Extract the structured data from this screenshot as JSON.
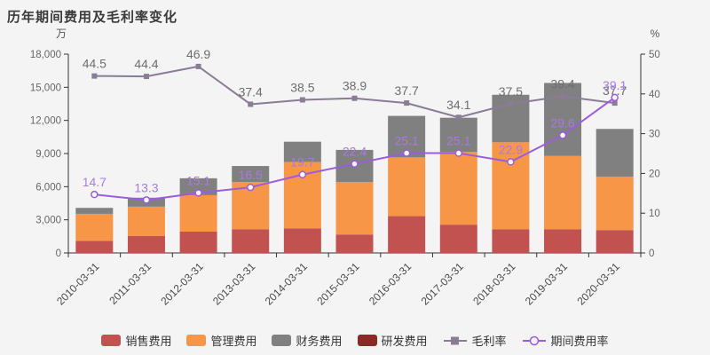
{
  "title": "历年期间费用及毛利率变化",
  "colors": {
    "background": "#f4f4f4",
    "axis_line": "#333333",
    "tick_label": "#666666",
    "category_label": "#4a4a4a"
  },
  "chart_data": {
    "type": "bar",
    "subtype": "stacked-bars-with-lines",
    "title": "历年期间费用及毛利率变化",
    "categories": [
      "2010-03-31",
      "2011-03-31",
      "2012-03-31",
      "2013-03-31",
      "2014-03-31",
      "2015-03-31",
      "2016-03-31",
      "2017-03-31",
      "2018-03-31",
      "2019-03-31",
      "2020-03-31"
    ],
    "left_axis": {
      "unit": "万",
      "min": 0,
      "max": 18000,
      "step": 3000
    },
    "right_axis": {
      "unit": "%",
      "min": 0,
      "max": 50,
      "step": 10
    },
    "grid": false,
    "legend_position": "bottom",
    "bar_series": [
      {
        "key": "selling-expense",
        "name": "销售费用",
        "color": "#c25250",
        "axis": "left",
        "values": [
          1100,
          1550,
          1930,
          2150,
          2230,
          1670,
          3330,
          2560,
          2150,
          2150,
          2070
        ]
      },
      {
        "key": "admin-expense",
        "name": "管理费用",
        "color": "#f79646",
        "axis": "left",
        "values": [
          2440,
          2640,
          3300,
          4270,
          6010,
          4760,
          5320,
          6580,
          7870,
          6630,
          4840
        ]
      },
      {
        "key": "finance-expense",
        "name": "财务费用",
        "color": "#808080",
        "axis": "left",
        "values": [
          540,
          810,
          1530,
          1450,
          1830,
          2900,
          3760,
          3100,
          4300,
          6610,
          4320
        ]
      },
      {
        "key": "rd-expense",
        "name": "研发费用",
        "color": "#8b2a24",
        "axis": "left",
        "values": [
          0,
          0,
          0,
          0,
          0,
          0,
          0,
          0,
          0,
          0,
          0
        ]
      }
    ],
    "line_series": [
      {
        "key": "gross-margin",
        "name": "毛利率",
        "color": "#8a7b96",
        "label_color": "#6e6e6e",
        "marker": "square",
        "axis": "right",
        "values": [
          44.5,
          44.4,
          46.9,
          37.4,
          38.5,
          38.9,
          37.7,
          34.1,
          37.5,
          39.4,
          37.7
        ]
      },
      {
        "key": "period-expense-ratio",
        "name": "期间费用率",
        "color": "#9b5ce0",
        "label_color": "#a87ae0",
        "marker": "circle-open",
        "axis": "right",
        "values": [
          14.7,
          13.3,
          15.1,
          16.5,
          19.7,
          22.4,
          25.1,
          25.1,
          22.9,
          29.6,
          39.1
        ]
      }
    ]
  }
}
